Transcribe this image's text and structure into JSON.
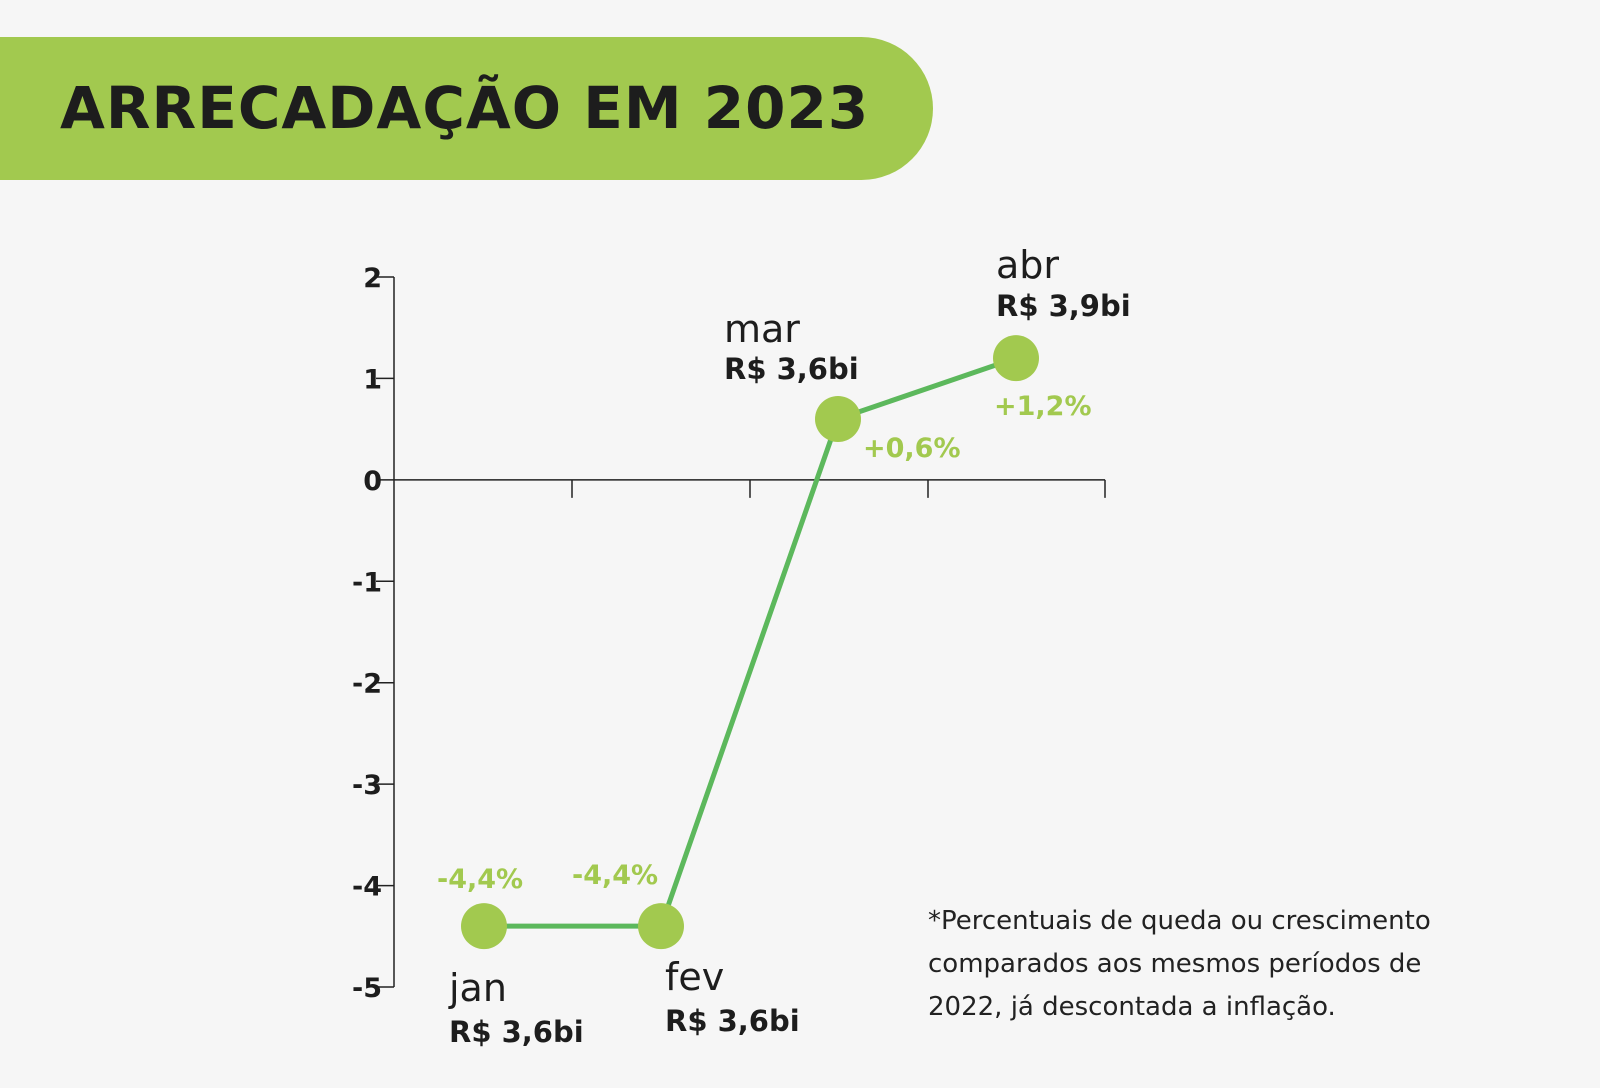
{
  "title": "ARRECADAÇÃO EM 2023",
  "footnote": [
    "*Percentuais de queda ou crescimento",
    "comparados aos mesmos períodos de",
    "2022, já descontada a inflação."
  ],
  "colors": {
    "banner": "#a2c94f",
    "line": "#5cb85c",
    "marker": "#a2c94f",
    "pct_label": "#a2c94f",
    "text": "#1d1d1d",
    "axis": "#222222"
  },
  "chart_data": {
    "type": "line",
    "categories": [
      "jan",
      "fev",
      "mar",
      "abr"
    ],
    "values": [
      -4.4,
      -4.4,
      0.6,
      1.2
    ],
    "pct_labels": [
      "-4,4%",
      "-4,4%",
      "+0,6%",
      "+1,2%"
    ],
    "amount_labels": [
      "R$ 3,6bi",
      "R$ 3,6bi",
      "R$ 3,6bi",
      "R$ 3,9bi"
    ],
    "yticks": [
      "2",
      "1",
      "0",
      "-1",
      "-2",
      "-3",
      "-4",
      "-5"
    ],
    "ylim": [
      -5,
      2
    ],
    "grid": false
  }
}
